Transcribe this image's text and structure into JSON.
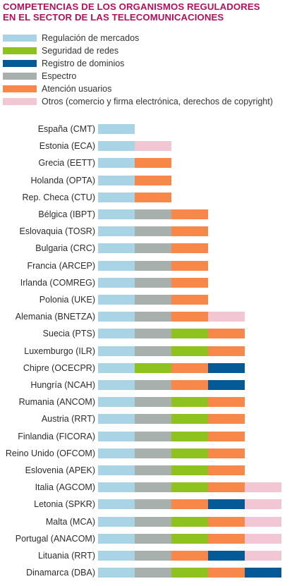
{
  "title": {
    "line1": "COMPETENCIAS DE LOS ORGANISMOS REGULADORES",
    "line2": "EN EL SECTOR DE LAS TELECOMUNICACIONES"
  },
  "legend": [
    {
      "key": "mercados",
      "label": "Regulación de mercados",
      "color": "#a9d4e6"
    },
    {
      "key": "redes",
      "label": "Seguridad de redes",
      "color": "#8dc21f"
    },
    {
      "key": "dominios",
      "label": "Registro de dominios",
      "color": "#035a97"
    },
    {
      "key": "espectro",
      "label": "Espectro",
      "color": "#a8b0ad"
    },
    {
      "key": "usuarios",
      "label": "Atención usuarios",
      "color": "#f7884a"
    },
    {
      "key": "otros",
      "label": "Otros (comercio y firma electrónica, derechos de copyright)",
      "color": "#f3c6d3"
    }
  ],
  "chart_data": {
    "type": "bar",
    "stacked": true,
    "orientation": "horizontal",
    "title": "COMPETENCIAS DE LOS ORGANISMOS REGULADORES EN EL SECTOR DE LAS TELECOMUNICACIONES",
    "rows": [
      {
        "name": "España (CMT)",
        "segments": [
          "mercados"
        ]
      },
      {
        "name": "Estonia (ECA)",
        "segments": [
          "mercados",
          "otros"
        ]
      },
      {
        "name": "Grecia (EETT)",
        "segments": [
          "mercados",
          "usuarios"
        ]
      },
      {
        "name": "Holanda (OPTA)",
        "segments": [
          "mercados",
          "usuarios"
        ]
      },
      {
        "name": "Rep. Checa (CTU)",
        "segments": [
          "mercados",
          "usuarios"
        ]
      },
      {
        "name": "Bélgica (IBPT)",
        "segments": [
          "mercados",
          "espectro",
          "usuarios"
        ]
      },
      {
        "name": "Eslovaquia (TOSR)",
        "segments": [
          "mercados",
          "espectro",
          "usuarios"
        ]
      },
      {
        "name": "Bulgaria (CRC)",
        "segments": [
          "mercados",
          "espectro",
          "usuarios"
        ]
      },
      {
        "name": "Francia (ARCEP)",
        "segments": [
          "mercados",
          "espectro",
          "usuarios"
        ]
      },
      {
        "name": "Irlanda (COMREG)",
        "segments": [
          "mercados",
          "espectro",
          "usuarios"
        ]
      },
      {
        "name": "Polonia (UKE)",
        "segments": [
          "mercados",
          "espectro",
          "usuarios"
        ]
      },
      {
        "name": "Alemania (BNETZA)",
        "segments": [
          "mercados",
          "espectro",
          "usuarios",
          "otros"
        ]
      },
      {
        "name": "Suecia (PTS)",
        "segments": [
          "mercados",
          "espectro",
          "redes",
          "usuarios"
        ]
      },
      {
        "name": "Luxemburgo (ILR)",
        "segments": [
          "mercados",
          "espectro",
          "redes",
          "usuarios"
        ]
      },
      {
        "name": "Chipre (OCECPR)",
        "segments": [
          "mercados",
          "redes",
          "usuarios",
          "dominios"
        ]
      },
      {
        "name": "Hungría (NCAH)",
        "segments": [
          "mercados",
          "espectro",
          "usuarios",
          "dominios"
        ]
      },
      {
        "name": "Rumania (ANCOM)",
        "segments": [
          "mercados",
          "espectro",
          "redes",
          "usuarios"
        ]
      },
      {
        "name": "Austria (RRT)",
        "segments": [
          "mercados",
          "espectro",
          "redes",
          "usuarios"
        ]
      },
      {
        "name": "Finlandia (FICORA)",
        "segments": [
          "mercados",
          "espectro",
          "redes",
          "usuarios"
        ]
      },
      {
        "name": "Reino Unido (OFCOM)",
        "segments": [
          "mercados",
          "espectro",
          "redes",
          "usuarios"
        ]
      },
      {
        "name": "Eslovenia (APEK)",
        "segments": [
          "mercados",
          "espectro",
          "redes",
          "usuarios"
        ]
      },
      {
        "name": "Italia (AGCOM)",
        "segments": [
          "mercados",
          "espectro",
          "redes",
          "usuarios",
          "otros"
        ]
      },
      {
        "name": "Letonia (SPKR)",
        "segments": [
          "mercados",
          "espectro",
          "usuarios",
          "dominios",
          "otros"
        ]
      },
      {
        "name": "Malta (MCA)",
        "segments": [
          "mercados",
          "espectro",
          "redes",
          "usuarios",
          "otros"
        ]
      },
      {
        "name": "Portugal (ANACOM)",
        "segments": [
          "mercados",
          "espectro",
          "redes",
          "usuarios",
          "otros"
        ]
      },
      {
        "name": "Lituania (RRT)",
        "segments": [
          "mercados",
          "espectro",
          "usuarios",
          "dominios",
          "otros"
        ]
      },
      {
        "name": "Dinamarca (DBA)",
        "segments": [
          "mercados",
          "espectro",
          "redes",
          "usuarios",
          "dominios"
        ]
      }
    ]
  }
}
